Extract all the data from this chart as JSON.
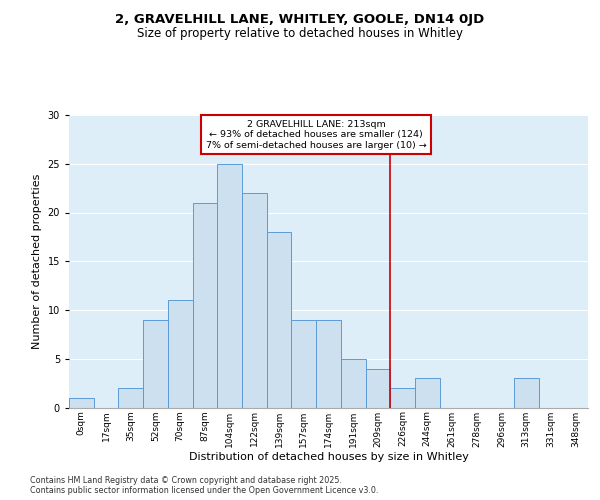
{
  "title_line1": "2, GRAVELHILL LANE, WHITLEY, GOOLE, DN14 0JD",
  "title_line2": "Size of property relative to detached houses in Whitley",
  "xlabel": "Distribution of detached houses by size in Whitley",
  "ylabel": "Number of detached properties",
  "bar_labels": [
    "0sqm",
    "17sqm",
    "35sqm",
    "52sqm",
    "70sqm",
    "87sqm",
    "104sqm",
    "122sqm",
    "139sqm",
    "157sqm",
    "174sqm",
    "191sqm",
    "209sqm",
    "226sqm",
    "244sqm",
    "261sqm",
    "278sqm",
    "296sqm",
    "313sqm",
    "331sqm",
    "348sqm"
  ],
  "bar_values": [
    1,
    0,
    2,
    9,
    11,
    21,
    25,
    22,
    18,
    9,
    9,
    5,
    4,
    2,
    3,
    0,
    0,
    0,
    3,
    0,
    0
  ],
  "bar_color": "#cce0f0",
  "bar_edge_color": "#5b9bd5",
  "vline_x": 12.5,
  "vline_color": "#cc0000",
  "annotation_text": "2 GRAVELHILL LANE: 213sqm\n← 93% of detached houses are smaller (124)\n7% of semi-detached houses are larger (10) →",
  "annotation_box_color": "#cc0000",
  "ylim": [
    0,
    30
  ],
  "yticks": [
    0,
    5,
    10,
    15,
    20,
    25,
    30
  ],
  "bg_color": "#ddeef8",
  "footer_text": "Contains HM Land Registry data © Crown copyright and database right 2025.\nContains public sector information licensed under the Open Government Licence v3.0.",
  "title_fontsize": 9.5,
  "subtitle_fontsize": 8.5,
  "axis_label_fontsize": 8,
  "tick_fontsize": 6.5,
  "annotation_fontsize": 6.8,
  "footer_fontsize": 5.8
}
